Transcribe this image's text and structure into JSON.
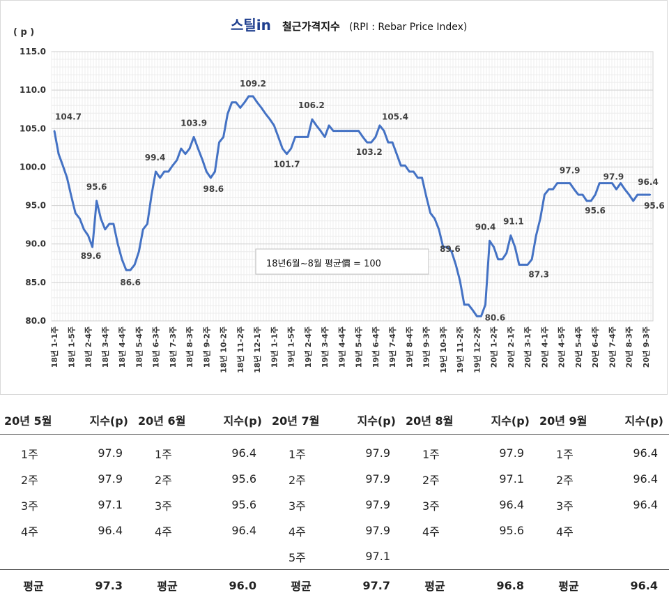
{
  "chart": {
    "logo": "스틸in",
    "title_main": "철근가격지수",
    "title_sub": "(RPI : Rebar Price Index)",
    "unit": "( p )",
    "note": "18년6월~8월 평균價 = 100",
    "line_color": "#4472C4"
  },
  "chart_data": {
    "type": "line",
    "title": "철근가격지수(RPI : Rebar Price Index)",
    "ylabel": "( p )",
    "ylim": [
      80,
      115
    ],
    "yticks": [
      "80.0",
      "85.0",
      "90.0",
      "95.0",
      "100.0",
      "105.0",
      "110.0",
      "115.0"
    ],
    "grid": true,
    "x_tick_labels": [
      "18년 1-1주",
      "18년 1-5주",
      "18년 2-4주",
      "18년 3-4주",
      "18년 4-4주",
      "18년 5-4주",
      "18년 6-3주",
      "18년 7-3주",
      "18년 8-3주",
      "18년 9-2주",
      "18년 10-2주",
      "18년 11-2주",
      "18년 12-1주",
      "19년 1-1주",
      "19년 1-5주",
      "19년 2-4주",
      "19년 3-4주",
      "19년 4-4주",
      "19년 5-4주",
      "19년 6-4주",
      "19년 7-4주",
      "19년 8-4주",
      "19년 9-3주",
      "19년 10-3주",
      "19년 11-2주",
      "19년 12-2주",
      "20년 1-2주",
      "20년 2-1주",
      "20년 3-1주",
      "20년 4-1주",
      "20년 4-5주",
      "20년 5-4주",
      "20년 6-4주",
      "20년 7-4주",
      "20년 8-3주",
      "20년 9-3주"
    ],
    "series": [
      {
        "values": [
          104.7,
          101.7,
          100.2,
          98.6,
          96.2,
          94.0,
          93.3,
          91.9,
          91.1,
          89.6,
          95.6,
          93.3,
          91.9,
          92.6,
          92.6,
          90.0,
          88.0,
          86.6,
          86.6,
          87.3,
          89.0,
          91.9,
          92.6,
          96.4,
          99.4,
          98.6,
          99.4,
          99.4,
          100.2,
          100.9,
          102.4,
          101.7,
          102.4,
          103.9,
          102.4,
          101.0,
          99.4,
          98.6,
          99.4,
          103.2,
          103.9,
          106.9,
          108.4,
          108.4,
          107.7,
          108.4,
          109.2,
          109.2,
          108.4,
          107.7,
          106.9,
          106.2,
          105.4,
          103.9,
          102.4,
          101.7,
          102.4,
          103.9,
          103.9,
          103.9,
          103.9,
          106.2,
          105.4,
          104.7,
          103.9,
          105.4,
          104.7,
          104.7,
          104.7,
          104.7,
          104.7,
          104.7,
          104.7,
          103.9,
          103.2,
          103.2,
          103.9,
          105.4,
          104.7,
          103.2,
          103.2,
          101.7,
          100.2,
          100.2,
          99.4,
          99.4,
          98.6,
          98.6,
          96.2,
          94.0,
          93.3,
          91.9,
          89.6,
          89.6,
          89.0,
          87.3,
          85.2,
          82.1,
          82.1,
          81.4,
          80.6,
          80.6,
          82.1,
          90.4,
          89.6,
          88.0,
          88.0,
          88.8,
          91.1,
          89.6,
          87.3,
          87.3,
          87.3,
          88.0,
          91.1,
          93.3,
          96.4,
          97.1,
          97.1,
          97.9,
          97.9,
          97.9,
          97.9,
          97.1,
          96.4,
          96.4,
          95.6,
          95.6,
          96.4,
          97.9,
          97.9,
          97.9,
          97.9,
          97.1,
          97.9,
          97.1,
          96.4,
          95.6,
          96.4,
          96.4,
          96.4,
          96.4
        ]
      }
    ],
    "point_labels": [
      {
        "text": "104.7"
      },
      {
        "text": "95.6"
      },
      {
        "text": "89.6"
      },
      {
        "text": "86.6"
      },
      {
        "text": "99.4"
      },
      {
        "text": "103.9"
      },
      {
        "text": "98.6"
      },
      {
        "text": "109.2"
      },
      {
        "text": "101.7"
      },
      {
        "text": "106.2"
      },
      {
        "text": "103.2"
      },
      {
        "text": "105.4"
      },
      {
        "text": "89.6"
      },
      {
        "text": "80.6"
      },
      {
        "text": "90.4"
      },
      {
        "text": "91.1"
      },
      {
        "text": "87.3"
      },
      {
        "text": "97.9"
      },
      {
        "text": "95.6"
      },
      {
        "text": "97.9"
      },
      {
        "text": "96.4"
      },
      {
        "text": "95.6"
      }
    ]
  },
  "table": {
    "headers": [
      "20년 5월",
      "지수(p)",
      "20년 6월",
      "지수(p)",
      "20년 7월",
      "지수(p)",
      "20년 8월",
      "지수(p)",
      "20년 9월",
      "지수(p)"
    ],
    "rows": [
      [
        "1주",
        "97.9",
        "1주",
        "96.4",
        "1주",
        "97.9",
        "1주",
        "97.9",
        "1주",
        "96.4"
      ],
      [
        "2주",
        "97.9",
        "2주",
        "95.6",
        "2주",
        "97.9",
        "2주",
        "97.1",
        "2주",
        "96.4"
      ],
      [
        "3주",
        "97.1",
        "3주",
        "95.6",
        "3주",
        "97.9",
        "3주",
        "96.4",
        "3주",
        "96.4"
      ],
      [
        "4주",
        "96.4",
        "4주",
        "96.4",
        "4주",
        "97.9",
        "4주",
        "95.6",
        "4주",
        ""
      ],
      [
        "",
        "",
        "",
        "",
        "5주",
        "97.1",
        "",
        "",
        "",
        ""
      ]
    ],
    "average": [
      "평균",
      "97.3",
      "평균",
      "96.0",
      "평균",
      "97.7",
      "평균",
      "96.8",
      "평균",
      "96.4"
    ]
  }
}
